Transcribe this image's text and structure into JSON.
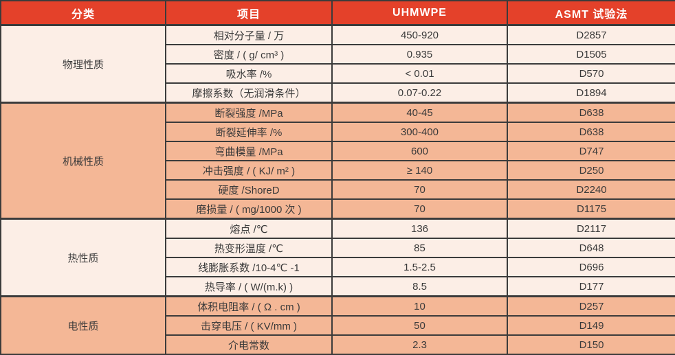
{
  "table": {
    "headers": {
      "category": "分类",
      "item": "项目",
      "uhmwpe": "UHMWPE",
      "astm": "ASMT 试验法"
    },
    "sections": [
      {
        "category": "物理性质",
        "rows": [
          {
            "item": "相对分子量 / 万",
            "uhmwpe": "450-920",
            "astm": "D2857"
          },
          {
            "item": "密度 / ( g/ cm³ )",
            "uhmwpe": "0.935",
            "astm": "D1505"
          },
          {
            "item": "吸水率 /%",
            "uhmwpe": "< 0.01",
            "astm": "D570"
          },
          {
            "item": "摩擦系数（无润滑条件）",
            "uhmwpe": "0.07-0.22",
            "astm": "D1894"
          }
        ]
      },
      {
        "category": "机械性质",
        "rows": [
          {
            "item": "断裂强度 /MPa",
            "uhmwpe": "40-45",
            "astm": "D638"
          },
          {
            "item": "断裂延伸率 /%",
            "uhmwpe": "300-400",
            "astm": "D638"
          },
          {
            "item": "弯曲模量 /MPa",
            "uhmwpe": "600",
            "astm": "D747"
          },
          {
            "item": "冲击强度 / ( KJ/ m² )",
            "uhmwpe": "≥ 140",
            "astm": "D250"
          },
          {
            "item": "硬度 /ShoreD",
            "uhmwpe": "70",
            "astm": "D2240"
          },
          {
            "item": "磨损量 / ( mg/1000 次 )",
            "uhmwpe": "70",
            "astm": "D1175"
          }
        ]
      },
      {
        "category": "热性质",
        "rows": [
          {
            "item": "熔点 /℃",
            "uhmwpe": "136",
            "astm": "D2117"
          },
          {
            "item": "热变形温度 /℃",
            "uhmwpe": "85",
            "astm": "D648"
          },
          {
            "item": "线膨胀系数 /10-4℃ -1",
            "uhmwpe": "1.5-2.5",
            "astm": "D696"
          },
          {
            "item": "热导率 / ( W/(m.k) )",
            "uhmwpe": "8.5",
            "astm": "D177"
          }
        ]
      },
      {
        "category": "电性质",
        "rows": [
          {
            "item": "体积电阻率 / ( Ω . cm )",
            "uhmwpe": "10",
            "astm": "D257"
          },
          {
            "item": "击穿电压 / ( KV/mm )",
            "uhmwpe": "50",
            "astm": "D149"
          },
          {
            "item": "介电常数",
            "uhmwpe": "2.3",
            "astm": "D150"
          }
        ]
      }
    ],
    "colors": {
      "header_bg": "#e4412a",
      "header_text": "#ffffff",
      "light_row_bg": "#fceee6",
      "salmon_row_bg": "#f4b796",
      "border": "#3b3b3b",
      "body_text": "#3a3a3a"
    }
  }
}
